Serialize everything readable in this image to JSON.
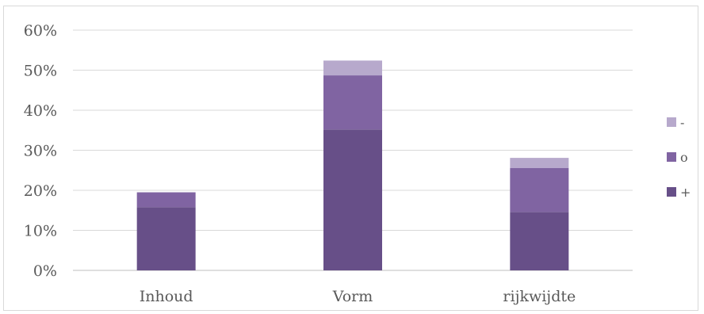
{
  "chart_data": {
    "type": "bar",
    "stacked": true,
    "categories": [
      "Inhoud",
      "Vorm",
      "rijkwijdte"
    ],
    "series": [
      {
        "name": "+",
        "values": [
          15.8,
          35.2,
          14.6
        ],
        "color": "#674f88"
      },
      {
        "name": "o",
        "values": [
          3.7,
          13.5,
          11.0
        ],
        "color": "#8064a2"
      },
      {
        "name": "-",
        "values": [
          0.0,
          3.7,
          2.5
        ],
        "color": "#b7a9cc"
      }
    ],
    "y_ticks": [
      "0%",
      "10%",
      "20%",
      "30%",
      "40%",
      "50%",
      "60%"
    ],
    "ylim": [
      0,
      60
    ],
    "unit": "%",
    "grid": true,
    "legend_position": "right",
    "legend_order": [
      "-",
      "o",
      "+"
    ],
    "title": "",
    "xlabel": "",
    "ylabel": ""
  }
}
